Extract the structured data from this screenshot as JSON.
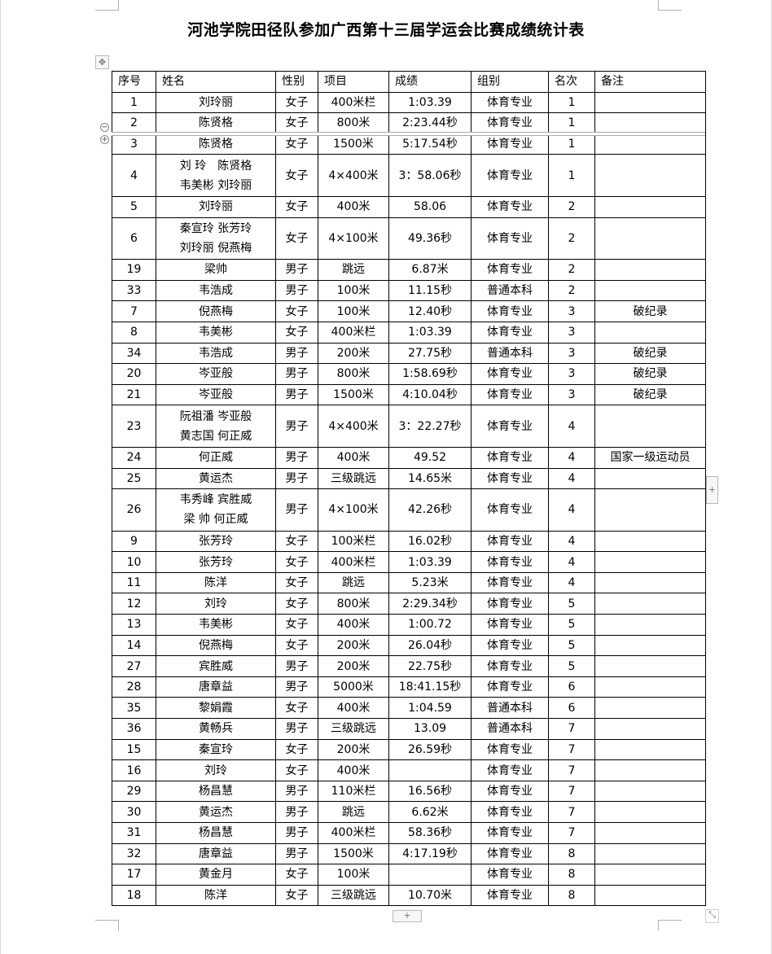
{
  "document": {
    "title": "河池学院田径队参加广西第十三届学运会比赛成绩统计表"
  },
  "table": {
    "headers": [
      "序号",
      "姓名",
      "性别",
      "项目",
      "成绩",
      "组别",
      "名次",
      "备注"
    ],
    "rows": [
      [
        "1",
        "刘玲丽",
        "女子",
        "400米栏",
        "1:03.39",
        "体育专业",
        "1",
        ""
      ],
      [
        "2",
        "陈贤格",
        "女子",
        "800米",
        "2:23.44秒",
        "体育专业",
        "1",
        ""
      ],
      [
        "3",
        "陈贤格",
        "女子",
        "1500米",
        "5:17.54秒",
        "体育专业",
        "1",
        ""
      ],
      [
        "4",
        "刘 玲　陈贤格\n韦美彬 刘玲丽",
        "女子",
        "4×400米",
        "3：58.06秒",
        "体育专业",
        "1",
        ""
      ],
      [
        "5",
        "刘玲丽",
        "女子",
        "400米",
        "58.06",
        "体育专业",
        "2",
        ""
      ],
      [
        "6",
        "秦宣玲 张芳玲\n刘玲丽 倪燕梅",
        "女子",
        "4×100米",
        "49.36秒",
        "体育专业",
        "2",
        ""
      ],
      [
        "19",
        "梁帅",
        "男子",
        "跳远",
        "6.87米",
        "体育专业",
        "2",
        ""
      ],
      [
        "33",
        "韦浩成",
        "男子",
        "100米",
        "11.15秒",
        "普通本科",
        "2",
        ""
      ],
      [
        "7",
        "倪燕梅",
        "女子",
        "100米",
        "12.40秒",
        "体育专业",
        "3",
        "破纪录"
      ],
      [
        "8",
        "韦美彬",
        "女子",
        "400米栏",
        "1:03.39",
        "体育专业",
        "3",
        ""
      ],
      [
        "34",
        "韦浩成",
        "男子",
        "200米",
        "27.75秒",
        "普通本科",
        "3",
        "破纪录"
      ],
      [
        "20",
        "岑亚般",
        "男子",
        "800米",
        "1:58.69秒",
        "体育专业",
        "3",
        "破纪录"
      ],
      [
        "21",
        "岑亚般",
        "男子",
        "1500米",
        "4:10.04秒",
        "体育专业",
        "3",
        "破纪录"
      ],
      [
        "23",
        "阮祖潘 岑亚般\n黄志国 何正威",
        "男子",
        "4×400米",
        "3：22.27秒",
        "体育专业",
        "4",
        ""
      ],
      [
        "24",
        "何正威",
        "男子",
        "400米",
        "49.52",
        "体育专业",
        "4",
        "国家一级运动员"
      ],
      [
        "25",
        "黄运杰",
        "男子",
        "三级跳远",
        "14.65米",
        "体育专业",
        "4",
        ""
      ],
      [
        "26",
        "韦秀峰 宾胜威\n梁 帅 何正威",
        "男子",
        "4×100米",
        "42.26秒",
        "体育专业",
        "4",
        ""
      ],
      [
        "9",
        "张芳玲",
        "女子",
        "100米栏",
        "16.02秒",
        "体育专业",
        "4",
        ""
      ],
      [
        "10",
        "张芳玲",
        "女子",
        "400米栏",
        "1:03.39",
        "体育专业",
        "4",
        ""
      ],
      [
        "11",
        "陈洋",
        "女子",
        "跳远",
        "5.23米",
        "体育专业",
        "4",
        ""
      ],
      [
        "12",
        "刘玲",
        "女子",
        "800米",
        "2:29.34秒",
        "体育专业",
        "5",
        ""
      ],
      [
        "13",
        "韦美彬",
        "女子",
        "400米",
        "1:00.72",
        "体育专业",
        "5",
        ""
      ],
      [
        "14",
        "倪燕梅",
        "女子",
        "200米",
        "26.04秒",
        "体育专业",
        "5",
        ""
      ],
      [
        "27",
        "宾胜威",
        "男子",
        "200米",
        "22.75秒",
        "体育专业",
        "5",
        ""
      ],
      [
        "28",
        "唐章益",
        "男子",
        "5000米",
        "18:41.15秒",
        "体育专业",
        "6",
        ""
      ],
      [
        "35",
        "黎娟霞",
        "女子",
        "400米",
        "1:04.59",
        "普通本科",
        "6",
        ""
      ],
      [
        "36",
        "黄畅兵",
        "男子",
        "三级跳远",
        "13.09",
        "普通本科",
        "7",
        ""
      ],
      [
        "15",
        "秦宣玲",
        "女子",
        "200米",
        "26.59秒",
        "体育专业",
        "7",
        ""
      ],
      [
        "16",
        "刘玲",
        "女子",
        "400米",
        "",
        "体育专业",
        "7",
        ""
      ],
      [
        "29",
        "杨昌慧",
        "男子",
        "110米栏",
        "16.56秒",
        "体育专业",
        "7",
        ""
      ],
      [
        "30",
        "黄运杰",
        "男子",
        "跳远",
        "6.62米",
        "体育专业",
        "7",
        ""
      ],
      [
        "31",
        "杨昌慧",
        "男子",
        "400米栏",
        "58.36秒",
        "体育专业",
        "7",
        ""
      ],
      [
        "32",
        "唐章益",
        "男子",
        "1500米",
        "4:17.19秒",
        "体育专业",
        "8",
        ""
      ],
      [
        "17",
        "黄金月",
        "女子",
        "100米",
        "",
        "体育专业",
        "8",
        ""
      ],
      [
        "18",
        "陈洋",
        "女子",
        "三级跳远",
        "10.70米",
        "体育专业",
        "8",
        ""
      ]
    ]
  },
  "controls": {
    "move_handle": "✥",
    "collapse": "−",
    "expand": "+",
    "add_column": "+",
    "add_row": "+",
    "resize": "⤡"
  }
}
